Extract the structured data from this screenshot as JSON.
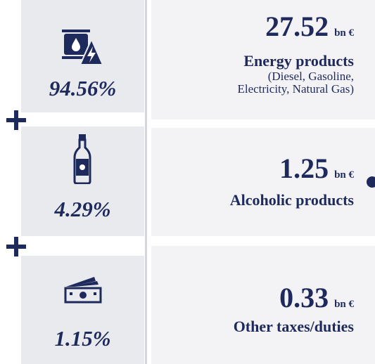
{
  "items": [
    {
      "percent": "94.56%",
      "amount": "27.52",
      "unit": "bn €",
      "label": "Energy products",
      "note": [
        "(Diesel, Gasoline,",
        "Electricity, Natural Gas)"
      ]
    },
    {
      "percent": "4.29%",
      "amount": "1.25",
      "unit": "bn €",
      "label": "Alcoholic products"
    },
    {
      "percent": "1.15%",
      "amount": "0.33",
      "unit": "bn €",
      "label": "Other taxes/duties"
    }
  ]
}
